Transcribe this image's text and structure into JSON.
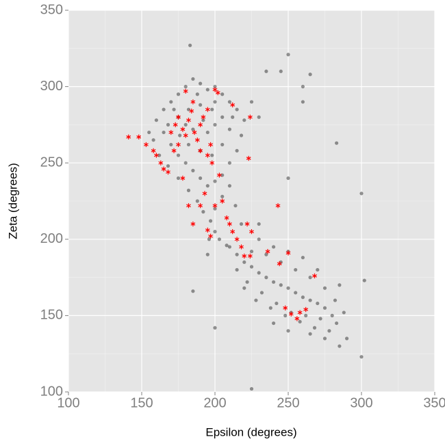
{
  "chart_data": {
    "type": "scatter",
    "x_label": "Epsilon (degrees)",
    "y_label": "Zeta (degrees)",
    "xlim": [
      100,
      350
    ],
    "ylim": [
      100,
      350
    ],
    "xticks": [
      100,
      150,
      200,
      250,
      300,
      350
    ],
    "yticks": [
      100,
      150,
      200,
      250,
      300,
      350
    ],
    "xminor": [
      125,
      175,
      225,
      275,
      325
    ],
    "yminor": [
      125,
      175,
      225,
      275,
      325
    ],
    "grid": true,
    "background": "#e5e5e5",
    "series": [
      {
        "color": "#000000",
        "opacity": 0.4,
        "marker": "circle",
        "x": [
          165,
          170,
          175,
          180,
          185,
          190,
          195,
          200,
          205,
          210,
          215,
          220,
          218,
          215,
          210,
          205,
          200,
          195,
          190,
          185,
          180,
          175,
          170,
          165,
          160,
          168,
          175,
          182,
          190,
          198,
          205,
          210,
          205,
          198,
          190,
          182,
          176,
          185,
          195,
          200,
          192,
          180,
          172,
          188,
          200,
          212,
          225,
          230,
          158,
          155,
          162,
          168,
          175,
          182,
          188,
          192,
          197,
          200,
          203,
          208,
          196,
          200,
          205,
          210,
          214,
          218,
          210,
          215,
          220,
          225,
          230,
          235,
          240,
          245,
          250,
          255,
          260,
          265,
          270,
          275,
          280,
          283,
          272,
          262,
          252,
          242,
          232,
          222,
          215,
          225,
          235,
          245,
          255,
          265,
          275,
          282,
          288,
          278,
          268,
          258,
          248,
          238,
          228,
          220,
          230,
          240,
          250,
          260,
          270,
          285,
          290,
          285,
          275,
          265,
          250,
          240,
          183,
          250,
          300,
          300,
          302,
          225,
          235,
          260,
          245,
          283,
          260,
          250,
          230,
          185,
          200,
          195,
          265
        ],
        "y": [
          285,
          290,
          295,
          300,
          305,
          302,
          298,
          300,
          295,
          290,
          285,
          278,
          268,
          258,
          250,
          242,
          238,
          235,
          240,
          245,
          250,
          255,
          262,
          270,
          278,
          275,
          280,
          285,
          288,
          285,
          280,
          272,
          262,
          255,
          258,
          262,
          268,
          272,
          270,
          275,
          278,
          275,
          285,
          295,
          290,
          280,
          290,
          280,
          265,
          270,
          255,
          248,
          240,
          232,
          225,
          218,
          212,
          205,
          200,
          196,
          200,
          220,
          228,
          235,
          222,
          210,
          195,
          190,
          185,
          182,
          178,
          175,
          172,
          170,
          168,
          165,
          162,
          160,
          158,
          155,
          150,
          145,
          148,
          150,
          152,
          158,
          165,
          172,
          180,
          192,
          190,
          185,
          180,
          175,
          168,
          160,
          152,
          140,
          142,
          146,
          150,
          155,
          160,
          168,
          200,
          195,
          192,
          188,
          180,
          170,
          135,
          130,
          135,
          138,
          140,
          145,
          327,
          321,
          230,
          123,
          173,
          102,
          310,
          300,
          310,
          263,
          290,
          240,
          210,
          166,
          142,
          190,
          308
        ]
      },
      {
        "color": "#ff0000",
        "opacity": 1,
        "marker": "asterisk",
        "x": [
          141,
          148,
          153,
          158,
          160,
          163,
          165,
          168,
          170,
          173,
          175,
          178,
          180,
          182,
          184,
          186,
          188,
          190,
          192,
          195,
          197,
          200,
          202,
          180,
          185,
          190,
          195,
          198,
          175,
          172,
          178,
          182,
          185,
          190,
          193,
          195,
          197,
          200,
          203,
          205,
          208,
          210,
          212,
          215,
          218,
          222,
          225,
          220,
          224,
          236,
          244,
          243,
          268,
          250,
          248,
          252,
          256,
          258,
          262,
          212,
          224,
          223
        ],
        "y": [
          267,
          267,
          262,
          258,
          255,
          250,
          246,
          244,
          270,
          275,
          280,
          272,
          268,
          278,
          284,
          270,
          265,
          275,
          280,
          285,
          262,
          298,
          296,
          297,
          290,
          258,
          255,
          250,
          262,
          258,
          240,
          222,
          210,
          222,
          230,
          206,
          202,
          222,
          242,
          225,
          214,
          210,
          205,
          200,
          195,
          210,
          205,
          189,
          189,
          192,
          184,
          222,
          176,
          191,
          155,
          151,
          148,
          152,
          154,
          288,
          280,
          253
        ]
      }
    ]
  }
}
